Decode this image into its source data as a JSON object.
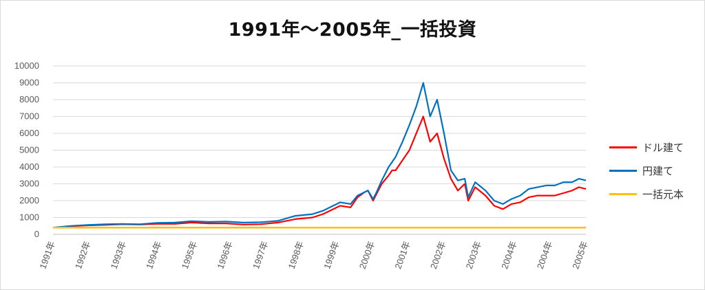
{
  "chart_data": {
    "type": "line",
    "title": "1991年～2005年_一括投資",
    "xlabel": "",
    "ylabel": "",
    "ylim": [
      0,
      10000
    ],
    "yticks": [
      "0",
      "1000",
      "2000",
      "3000",
      "4000",
      "5000",
      "6000",
      "7000",
      "8000",
      "9000",
      "10000"
    ],
    "x_tick_labels": [
      "1991年",
      "1992年",
      "1993年",
      "1994年",
      "1995年",
      "1996年",
      "1997年",
      "1998年",
      "1999年",
      "2000年",
      "2001年",
      "2002年",
      "2003年",
      "2004年",
      "2004年",
      "2005年"
    ],
    "grid": true,
    "legend_position": "right",
    "x": [
      1991.0,
      1991.5,
      1992.0,
      1992.5,
      1993.0,
      1993.5,
      1994.0,
      1994.5,
      1995.0,
      1995.5,
      1996.0,
      1996.5,
      1997.0,
      1997.5,
      1998.0,
      1998.5,
      1998.8,
      1999.0,
      1999.3,
      1999.6,
      1999.8,
      2000.0,
      2000.1,
      2000.25,
      2000.35,
      2000.5,
      2000.7,
      2000.8,
      2000.9,
      2001.1,
      2001.3,
      2001.5,
      2001.7,
      2001.9,
      2002.1,
      2002.3,
      2002.5,
      2002.7,
      2002.9,
      2003.0,
      2003.2,
      2003.5,
      2003.75,
      2004.0,
      2004.25,
      2004.5,
      2004.75,
      2005.0,
      2005.25,
      2005.5,
      2005.75,
      2006.0,
      2006.2,
      2006.4
    ],
    "series": [
      {
        "name": "ドル建て",
        "color": "#ff0000",
        "values": [
          400,
          480,
          530,
          560,
          600,
          580,
          620,
          620,
          700,
          650,
          650,
          580,
          600,
          700,
          900,
          1000,
          1200,
          1400,
          1700,
          1600,
          2200,
          2500,
          2600,
          2000,
          2400,
          3000,
          3500,
          3800,
          3800,
          4400,
          5000,
          6000,
          7000,
          5500,
          6000,
          4500,
          3300,
          2600,
          3000,
          2000,
          2800,
          2300,
          1700,
          1500,
          1800,
          1900,
          2200,
          2300,
          2300,
          2300,
          2450,
          2600,
          2800,
          2700
        ]
      },
      {
        "name": "円建て",
        "color": "#0070c0",
        "values": [
          400,
          500,
          560,
          600,
          620,
          600,
          680,
          700,
          780,
          740,
          760,
          700,
          720,
          800,
          1100,
          1200,
          1400,
          1600,
          1900,
          1800,
          2300,
          2500,
          2600,
          2100,
          2500,
          3200,
          4000,
          4300,
          4600,
          5500,
          6500,
          7600,
          9000,
          7000,
          8000,
          6000,
          3800,
          3200,
          3300,
          2200,
          3100,
          2600,
          2000,
          1800,
          2100,
          2300,
          2700,
          2800,
          2900,
          2900,
          3100,
          3100,
          3300,
          3200
        ]
      },
      {
        "name": "一括元本",
        "color": "#ffc000",
        "values": [
          400,
          400,
          400,
          400,
          400,
          400,
          400,
          400,
          400,
          400,
          400,
          400,
          400,
          400,
          400,
          400,
          400,
          400,
          400,
          400,
          400,
          400,
          400,
          400,
          400,
          400,
          400,
          400,
          400,
          400,
          400,
          400,
          400,
          400,
          400,
          400,
          400,
          400,
          400,
          400,
          400,
          400,
          400,
          400,
          400,
          400,
          400,
          400,
          400,
          400,
          400,
          400,
          400,
          400
        ]
      }
    ]
  }
}
